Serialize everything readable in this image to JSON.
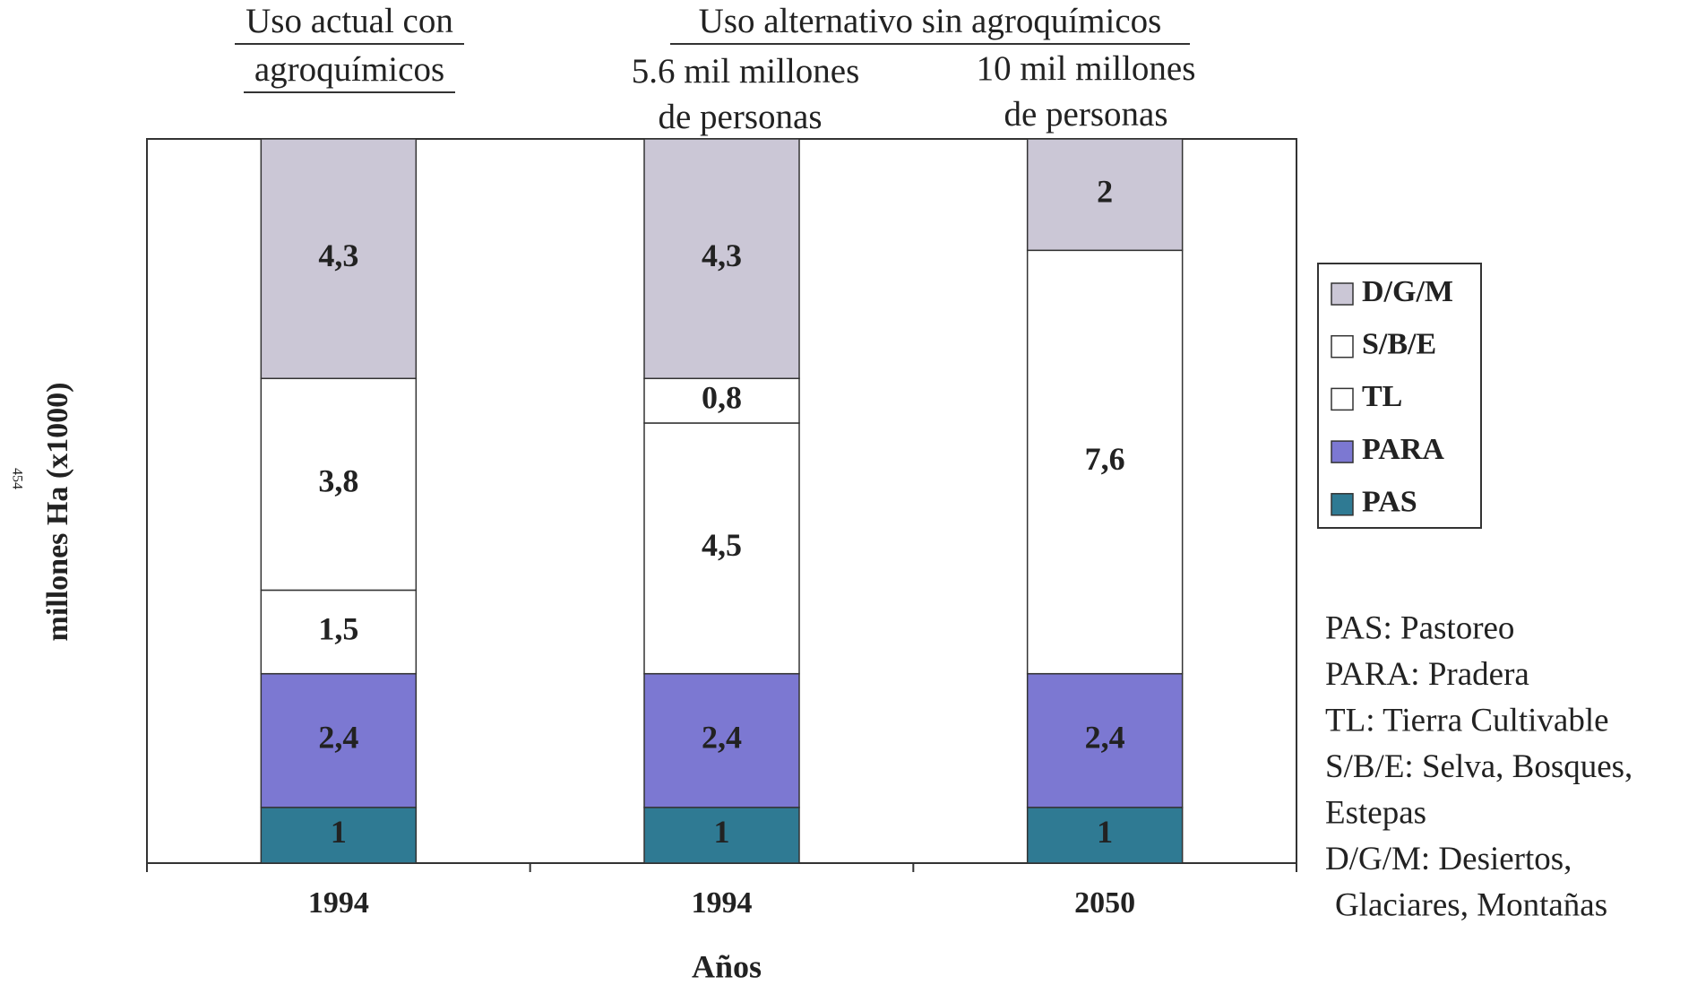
{
  "chart_data": {
    "type": "stacked_bar",
    "headers": {
      "left": [
        "Uso actual con",
        "agroquímicos"
      ],
      "right": "Uso alternativo sin agroquímicos",
      "sub1": [
        "5.6 mil millones",
        "de personas"
      ],
      "sub2": [
        "10 mil millones",
        "de personas"
      ]
    },
    "page_number": "454",
    "ylabel": "millones Ha (x1000)",
    "xlabel": "Años",
    "categories": [
      "1994",
      "1994",
      "2050"
    ],
    "ylim": [
      0,
      13
    ],
    "series": [
      {
        "name": "PAS",
        "color": "#2f7a93",
        "values": [
          1,
          1,
          1
        ]
      },
      {
        "name": "PARA",
        "color": "#7c78d2",
        "values": [
          2.4,
          2.4,
          2.4
        ],
        "value_labels": [
          "2,4",
          "2,4",
          "2,4"
        ]
      },
      {
        "name": "TL",
        "color": "#ffffff",
        "values": [
          1.5,
          4.5,
          7.6
        ],
        "value_labels": [
          "1,5",
          "4,5",
          "7,6"
        ]
      },
      {
        "name": "S/B/E",
        "color": "#ffffff",
        "values": [
          3.8,
          0.8,
          null
        ],
        "value_labels": [
          "3,8",
          "0,8",
          null
        ]
      },
      {
        "name": "D/G/M",
        "color": "#cbc7d6",
        "values": [
          4.3,
          4.3,
          2
        ],
        "value_labels": [
          "4,3",
          "4,3",
          "2"
        ]
      }
    ],
    "notes": [
      "PAS: Pastoreo",
      "PARA: Pradera",
      "TL: Tierra Cultivable",
      "S/B/E: Selva, Bosques,",
      "Estepas",
      "D/G/M: Desiertos,",
      "Glaciares, Montañas"
    ]
  }
}
